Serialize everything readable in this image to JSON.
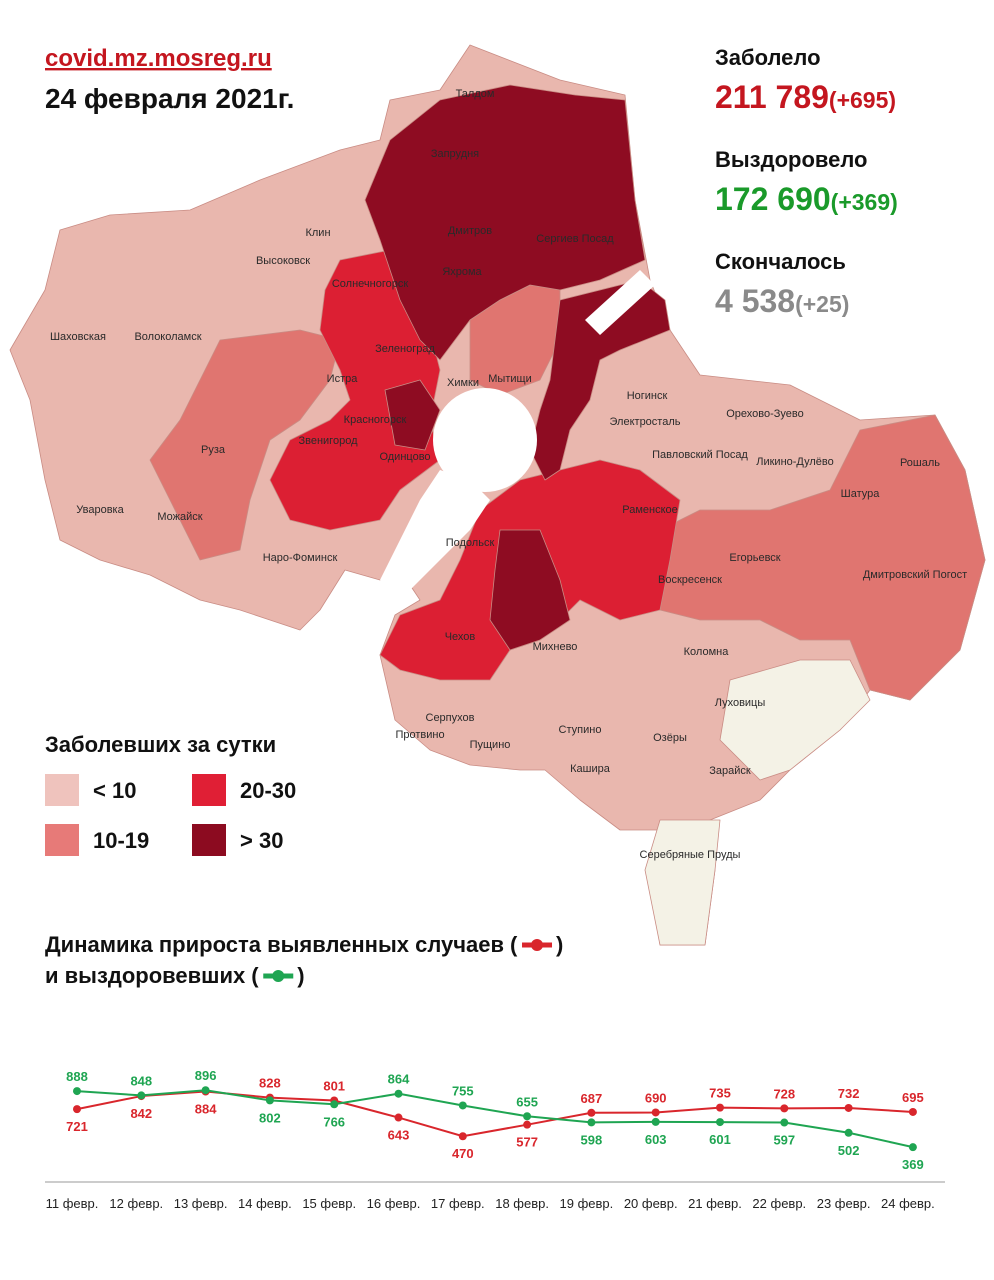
{
  "header": {
    "site": "covid.mz.mosreg.ru",
    "date": "24 февраля 2021г."
  },
  "stats": [
    {
      "label": "Заболело",
      "value": "211 789",
      "delta": "(+695)",
      "color": "#c4161f"
    },
    {
      "label": "Выздоровело",
      "value": "172 690",
      "delta": "(+369)",
      "color": "#1a9a2a"
    },
    {
      "label": "Скончалось",
      "value": "4 538",
      "delta": "(+25)",
      "color": "#8a8a8a"
    }
  ],
  "legend": {
    "title": "Заболевших за сутки",
    "items": [
      {
        "label": "< 10",
        "color": "#efc3bd"
      },
      {
        "label": "20-30",
        "color": "#e01f35"
      },
      {
        "label": "10-19",
        "color": "#e77a78"
      },
      {
        "label": "> 30",
        "color": "#8c0b20"
      }
    ]
  },
  "map": {
    "labels": [
      "Талдом",
      "Запрудня",
      "Дмитров",
      "Сергиев Посад",
      "Яхрома",
      "Клин",
      "Высоковск",
      "Солнечногорск",
      "Шаховская",
      "Волоколамск",
      "Зеленоград",
      "Истра",
      "Мытищи",
      "Химки",
      "Ногинск",
      "Орехово-Зуево",
      "Электросталь",
      "Красногорск",
      "Звенигород",
      "Одинцово",
      "Павловский Посад",
      "Ликино-Дулёво",
      "Рошаль",
      "Руза",
      "Шатура",
      "Раменское",
      "Уваровка",
      "Можайск",
      "Наро-Фоминск",
      "Подольск",
      "Егорьевск",
      "Воскресенск",
      "Дмитровский Погост",
      "Чехов",
      "Михнево",
      "Коломна",
      "Луховицы",
      "Серпухов",
      "Протвино",
      "Пущино",
      "Ступино",
      "Озёры",
      "Кашира",
      "Зарайск",
      "Серебряные Пруды"
    ]
  },
  "chart_data": {
    "type": "line",
    "title": "Динамика прироста выявленных случаев",
    "subtitle": "и выздоровевших",
    "legend_open": "(",
    "legend_close": ")",
    "categories": [
      "11 февр.",
      "12 февр.",
      "13 февр.",
      "14 февр.",
      "15 февр.",
      "16 февр.",
      "17 февр.",
      "18 февр.",
      "19 февр.",
      "20 февр.",
      "21 февр.",
      "22 февр.",
      "23 февр.",
      "24 февр."
    ],
    "series": [
      {
        "name": "выявленных случаев",
        "color": "#d9262c",
        "values": [
          721,
          842,
          884,
          828,
          801,
          643,
          470,
          577,
          687,
          690,
          735,
          728,
          732,
          695
        ]
      },
      {
        "name": "выздоровевших",
        "color": "#1fa552",
        "values": [
          888,
          848,
          896,
          802,
          766,
          864,
          755,
          655,
          598,
          603,
          601,
          597,
          502,
          369
        ]
      }
    ],
    "ylim": [
      0,
      1000
    ]
  }
}
